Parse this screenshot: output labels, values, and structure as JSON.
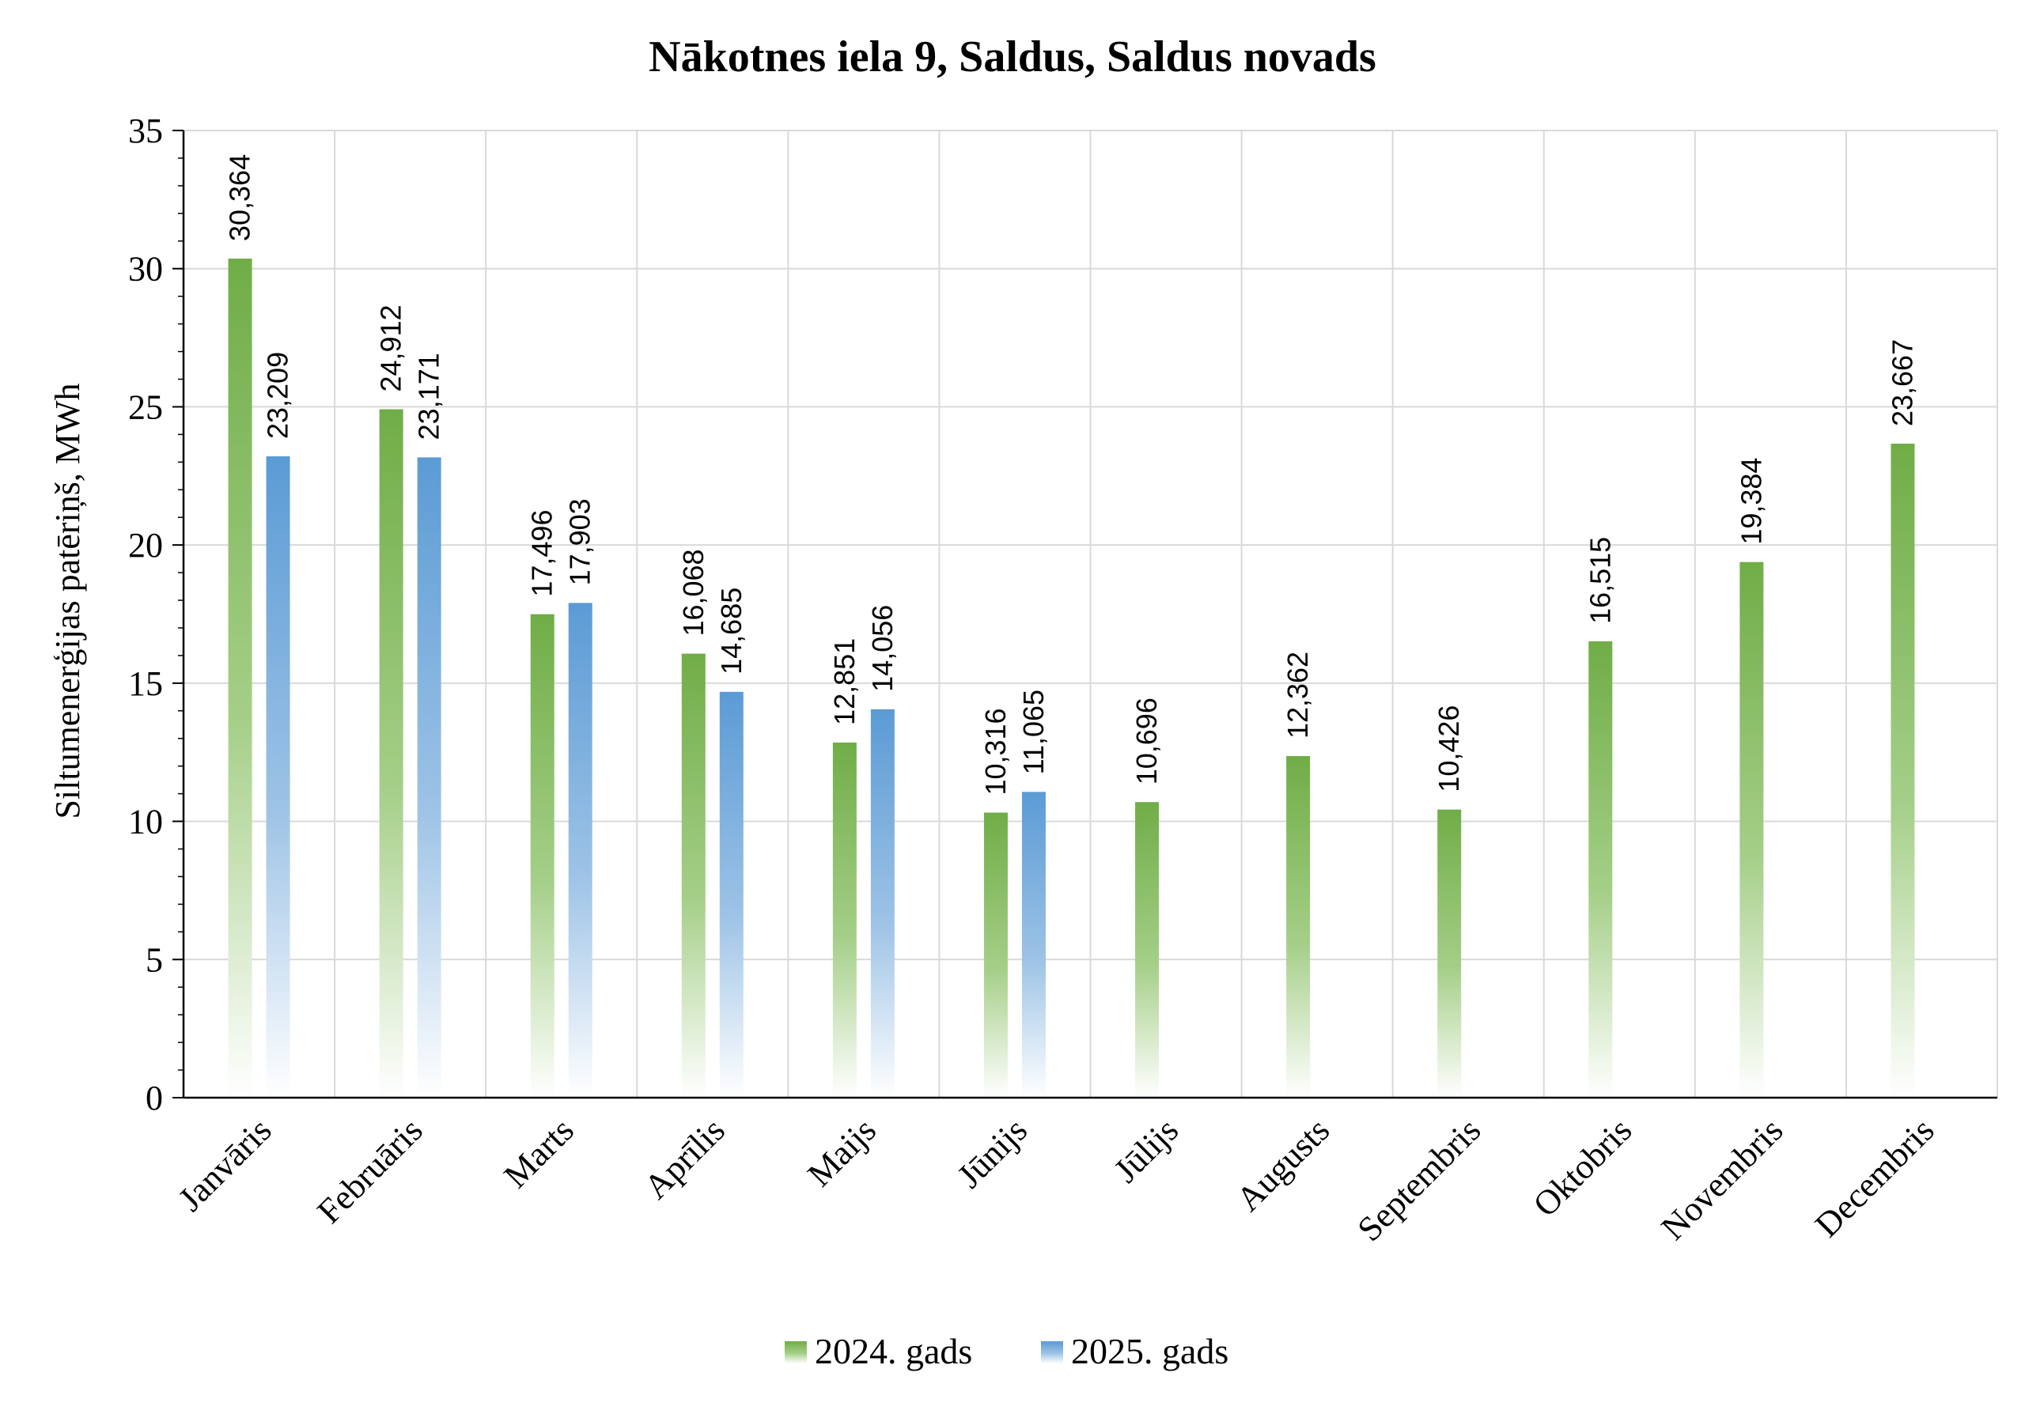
{
  "chart_data": {
    "type": "bar",
    "title": "Nākotnes iela 9, Saldus, Saldus novads",
    "ylabel": "Siltumenerģijas patēriņš, MWh",
    "xlabel": "",
    "ylim": [
      0,
      35
    ],
    "yticks": [
      0,
      5,
      10,
      15,
      20,
      25,
      30,
      35
    ],
    "grid": true,
    "legend_position": "bottom",
    "categories": [
      "Janvāris",
      "Februāris",
      "Marts",
      "Aprīlis",
      "Maijs",
      "Jūnijs",
      "Jūlijs",
      "Augusts",
      "Septembris",
      "Oktobris",
      "Novembris",
      "Decembris"
    ],
    "series": [
      {
        "name": "2024. gads",
        "color": "#70ad47",
        "values": [
          30.364,
          24.912,
          17.496,
          16.068,
          12.851,
          10.316,
          10.696,
          12.362,
          10.426,
          16.515,
          19.384,
          23.667
        ],
        "labels": [
          "30,364",
          "24,912",
          "17,496",
          "16,068",
          "12,851",
          "10,316",
          "10,696",
          "12,362",
          "10,426",
          "16,515",
          "19,384",
          "23,667"
        ]
      },
      {
        "name": "2025. gads",
        "color": "#5b9bd5",
        "values": [
          23.209,
          23.171,
          17.903,
          14.685,
          14.056,
          11.065,
          null,
          null,
          null,
          null,
          null,
          null
        ],
        "labels": [
          "23,209",
          "23,171",
          "17,903",
          "14,685",
          "14,056",
          "11,065",
          "",
          "",
          "",
          "",
          "",
          ""
        ]
      }
    ]
  }
}
